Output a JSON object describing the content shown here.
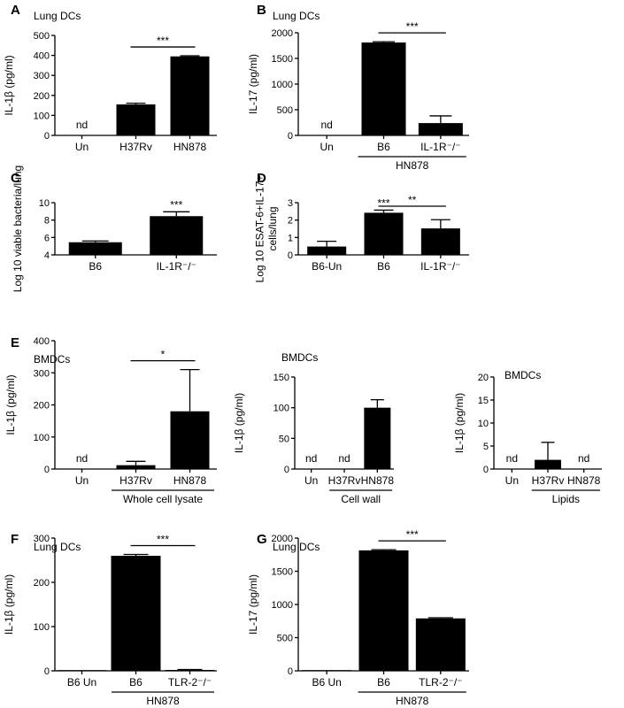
{
  "chart_data": [
    {
      "id": "A",
      "panel_label": "A",
      "subtitle": "Lung DCs",
      "type": "bar",
      "ylabel": "IL-1β  (pg/ml)",
      "ylim": [
        0,
        500
      ],
      "yticks": [
        0,
        100,
        200,
        300,
        400,
        500
      ],
      "categories": [
        "Un",
        "H37Rv",
        "HN878"
      ],
      "values": [
        null,
        155,
        395
      ],
      "errors": [
        null,
        6,
        3
      ],
      "annotations": [
        "nd",
        "",
        ""
      ],
      "brackets": [
        {
          "from": 1,
          "to": 2,
          "label": "***"
        }
      ],
      "group_labels": []
    },
    {
      "id": "B",
      "panel_label": "B",
      "subtitle": "Lung DCs",
      "type": "bar",
      "ylabel": "IL-17  (pg/ml)",
      "ylim": [
        0,
        2000
      ],
      "yticks": [
        0,
        500,
        1000,
        1500,
        2000
      ],
      "categories": [
        "Un",
        "B6",
        "IL-1R⁻/⁻"
      ],
      "values": [
        null,
        1810,
        240
      ],
      "errors": [
        null,
        15,
        140
      ],
      "annotations": [
        "nd",
        "",
        ""
      ],
      "brackets": [
        {
          "from": 1,
          "to": 2,
          "label": "***"
        }
      ],
      "group_labels": [
        {
          "from": 1,
          "to": 2,
          "label": "HN878"
        }
      ]
    },
    {
      "id": "C",
      "panel_label": "C",
      "subtitle": "",
      "type": "bar",
      "ylabel": "Log 10 viable bacteria/lung",
      "ylim": [
        4,
        10
      ],
      "yticks": [
        4,
        6,
        8,
        10
      ],
      "categories": [
        "B6",
        "IL-1R⁻/⁻"
      ],
      "values": [
        5.45,
        8.45
      ],
      "errors": [
        0.15,
        0.5
      ],
      "annotations": [
        "",
        ""
      ],
      "stars": [
        {
          "index": 1,
          "label": "***"
        }
      ],
      "brackets": [],
      "group_labels": []
    },
    {
      "id": "D",
      "panel_label": "D",
      "subtitle": "",
      "type": "bar",
      "ylabel": "Log 10 ESAT-6+IL-17+ cells/lung",
      "ylim": [
        0,
        3
      ],
      "yticks": [
        0,
        1,
        2,
        3
      ],
      "categories": [
        "B6-Un",
        "B6",
        "IL-1R⁻/⁻"
      ],
      "values": [
        0.48,
        2.42,
        1.52
      ],
      "errors": [
        0.3,
        0.15,
        0.5
      ],
      "annotations": [
        "",
        "",
        ""
      ],
      "stars": [
        {
          "index": 1,
          "label": "***"
        }
      ],
      "brackets": [
        {
          "from": 1,
          "to": 2,
          "label": "**"
        }
      ],
      "group_labels": []
    },
    {
      "id": "E1",
      "panel_label": "E",
      "subtitle": "BMDCs",
      "type": "bar",
      "ylabel": "IL-1β  (pg/ml)",
      "ylim": [
        0,
        400
      ],
      "yticks": [
        0,
        100,
        200,
        300,
        400
      ],
      "categories": [
        "Un",
        "H37Rv",
        "HN878"
      ],
      "values": [
        null,
        12,
        180
      ],
      "errors": [
        null,
        12,
        130
      ],
      "annotations": [
        "nd",
        "",
        ""
      ],
      "brackets": [
        {
          "from": 1,
          "to": 2,
          "label": "*"
        }
      ],
      "group_labels": [
        {
          "from": 1,
          "to": 2,
          "label": "Whole cell lysate"
        }
      ]
    },
    {
      "id": "E2",
      "panel_label": "",
      "subtitle": "BMDCs",
      "type": "bar",
      "ylabel": "IL-1β  (pg/ml)",
      "ylim": [
        0,
        150
      ],
      "yticks": [
        0,
        50,
        100,
        150
      ],
      "categories": [
        "Un",
        "H37Rv",
        "HN878"
      ],
      "values": [
        null,
        null,
        100
      ],
      "errors": [
        null,
        null,
        13
      ],
      "annotations": [
        "nd",
        "nd",
        ""
      ],
      "brackets": [],
      "group_labels": [
        {
          "from": 1,
          "to": 2,
          "label": "Cell wall"
        }
      ]
    },
    {
      "id": "E3",
      "panel_label": "",
      "subtitle": "BMDCs",
      "type": "bar",
      "ylabel": "IL-1β  (pg/ml)",
      "ylim": [
        0,
        20
      ],
      "yticks": [
        0,
        5,
        10,
        15,
        20
      ],
      "categories": [
        "Un",
        "H37Rv",
        "HN878"
      ],
      "values": [
        null,
        2,
        null
      ],
      "errors": [
        null,
        3.8,
        null
      ],
      "annotations": [
        "nd",
        "",
        "nd"
      ],
      "brackets": [],
      "group_labels": [
        {
          "from": 1,
          "to": 2,
          "label": "Lipids"
        }
      ]
    },
    {
      "id": "F",
      "panel_label": "F",
      "subtitle": "Lung DCs",
      "type": "bar",
      "ylabel": "IL-1β  (pg/ml)",
      "ylim": [
        0,
        300
      ],
      "yticks": [
        0,
        100,
        200,
        300
      ],
      "categories": [
        "B6 Un",
        "B6",
        "TLR-2⁻/⁻"
      ],
      "values": [
        1,
        260,
        2
      ],
      "errors": [
        0,
        3,
        1
      ],
      "annotations": [
        "",
        "",
        ""
      ],
      "brackets": [
        {
          "from": 1,
          "to": 2,
          "label": "***"
        }
      ],
      "group_labels": [
        {
          "from": 1,
          "to": 2,
          "label": "HN878"
        }
      ]
    },
    {
      "id": "G",
      "panel_label": "G",
      "subtitle": "Lung DCs",
      "type": "bar",
      "ylabel": "IL-17  (pg/ml)",
      "ylim": [
        0,
        2000
      ],
      "yticks": [
        0,
        500,
        1000,
        1500,
        2000
      ],
      "categories": [
        "B6 Un",
        "B6",
        "TLR-2⁻/⁻"
      ],
      "values": [
        4,
        1815,
        790
      ],
      "errors": [
        0,
        10,
        10
      ],
      "annotations": [
        "",
        "",
        ""
      ],
      "brackets": [
        {
          "from": 1,
          "to": 2,
          "label": "***"
        }
      ],
      "group_labels": [
        {
          "from": 1,
          "to": 2,
          "label": "HN878"
        }
      ]
    }
  ]
}
